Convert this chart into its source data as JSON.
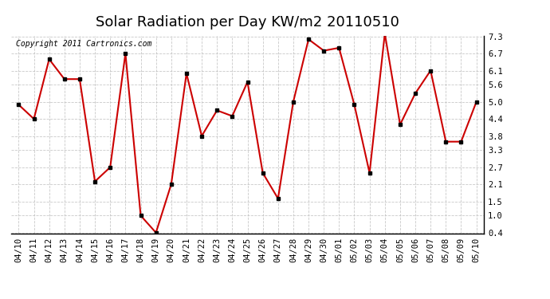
{
  "title": "Solar Radiation per Day KW/m2 20110510",
  "copyright": "Copyright 2011 Cartronics.com",
  "dates": [
    "04/10",
    "04/11",
    "04/12",
    "04/13",
    "04/14",
    "04/15",
    "04/16",
    "04/17",
    "04/18",
    "04/19",
    "04/20",
    "04/21",
    "04/22",
    "04/23",
    "04/24",
    "04/25",
    "04/26",
    "04/27",
    "04/28",
    "04/29",
    "04/30",
    "05/01",
    "05/02",
    "05/03",
    "05/04",
    "05/05",
    "05/06",
    "05/07",
    "05/08",
    "05/09",
    "05/10"
  ],
  "values": [
    4.9,
    4.4,
    6.5,
    5.8,
    5.8,
    2.2,
    2.7,
    6.7,
    1.0,
    0.4,
    2.1,
    6.0,
    3.8,
    4.7,
    4.5,
    5.7,
    2.5,
    1.6,
    5.0,
    7.2,
    6.8,
    6.9,
    4.9,
    2.5,
    7.4,
    4.2,
    5.3,
    6.1,
    3.6,
    3.6,
    5.0
  ],
  "line_color": "#cc0000",
  "marker_color": "#000000",
  "bg_color": "#ffffff",
  "plot_bg_color": "#ffffff",
  "grid_color": "#bbbbbb",
  "yticks": [
    0.4,
    1.0,
    1.5,
    2.1,
    2.7,
    3.3,
    3.8,
    4.4,
    5.0,
    5.6,
    6.1,
    6.7,
    7.3
  ],
  "ylim": [
    0.4,
    7.3
  ],
  "title_fontsize": 13,
  "copyright_fontsize": 7,
  "tick_fontsize": 7.5
}
